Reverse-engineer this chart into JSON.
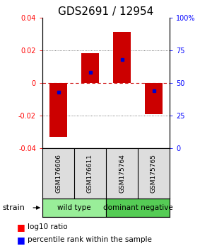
{
  "title": "GDS2691 / 12954",
  "samples": [
    "GSM176606",
    "GSM176611",
    "GSM175764",
    "GSM175765"
  ],
  "log10_ratios": [
    -0.033,
    0.018,
    0.031,
    -0.019
  ],
  "percentile_ranks": [
    43,
    58,
    68,
    44
  ],
  "groups": [
    {
      "name": "wild type",
      "samples": [
        0,
        1
      ],
      "color": "#99ee99"
    },
    {
      "name": "dominant negative",
      "samples": [
        2,
        3
      ],
      "color": "#55cc55"
    }
  ],
  "group_label": "strain",
  "bar_color": "#cc0000",
  "dot_color": "#0000cc",
  "ylim": [
    -0.04,
    0.04
  ],
  "yticks_left": [
    -0.04,
    -0.02,
    0,
    0.02,
    0.04
  ],
  "yticks_right": [
    0,
    25,
    50,
    75,
    100
  ],
  "hline_color": "#cc0000",
  "dotted_color": "#555555",
  "bar_width": 0.55,
  "title_fontsize": 11,
  "tick_fontsize": 7,
  "sample_fontsize": 6.5,
  "group_fontsize": 7.5,
  "legend_fontsize": 7.5
}
